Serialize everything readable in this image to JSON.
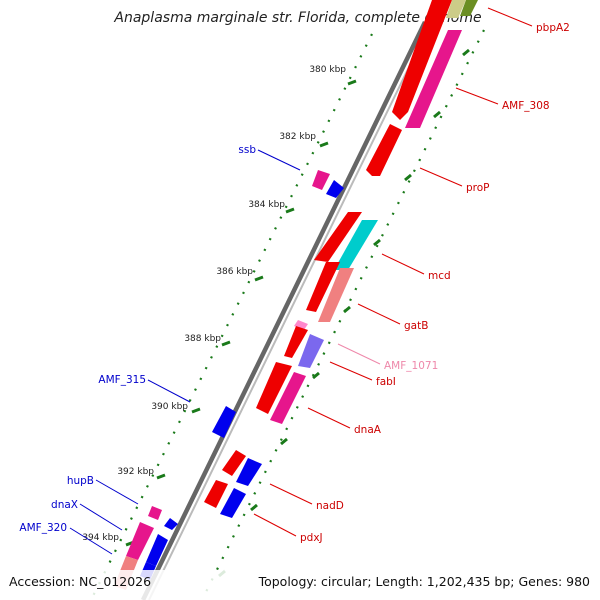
{
  "title": "Anaplasma marginale str. Florida, complete genome",
  "footer": {
    "accession": "Accession: NC_012026",
    "summary": "Topology: circular; Length: 1,202,435 bp; Genes: 980"
  },
  "colors": {
    "backbone": "#777777",
    "tick": "#1a7a1a",
    "reverse_label": "#0000cc",
    "forward_label": "#cc0000",
    "pink_label": "#ee88aa"
  },
  "position_labels": [
    "380 kbp",
    "382 kbp",
    "384 kbp",
    "386 kbp",
    "388 kbp",
    "390 kbp",
    "392 kbp",
    "394 kbp"
  ],
  "gene_labels": {
    "right": [
      "pbpA2",
      "AMF_308",
      "proP",
      "mcd",
      "gatB",
      "AMF_1071",
      "fabI",
      "dnaA",
      "nadD",
      "pdxJ"
    ],
    "left": [
      "ssb",
      "AMF_315",
      "hupB",
      "dnaX",
      "AMF_320"
    ]
  }
}
